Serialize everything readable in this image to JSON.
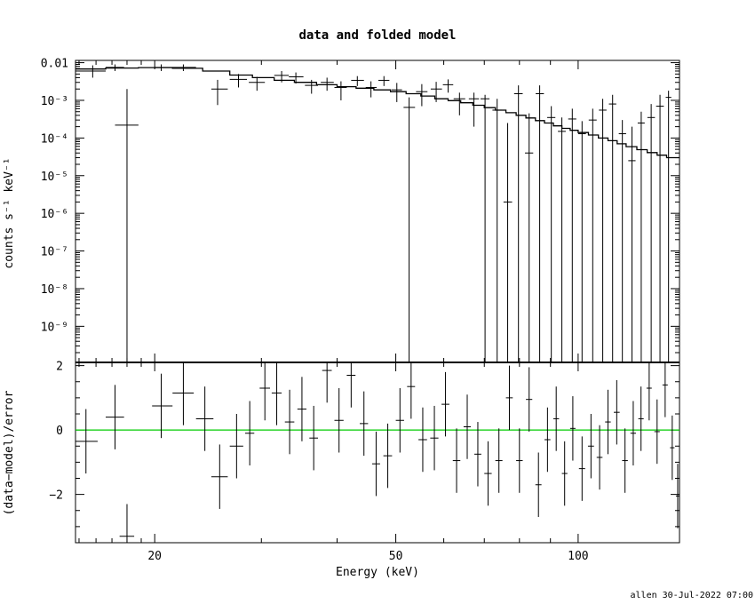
{
  "chart_data": [
    {
      "panel": "top",
      "type": "scatter",
      "title": "data and folded model",
      "ylabel": "counts s⁻¹ keV⁻¹",
      "xlabel": "Energy (keV)",
      "xscale": "log",
      "yscale": "log",
      "xlim": [
        14.8,
        147
      ],
      "ylim": [
        1.1e-10,
        0.0115
      ],
      "y_tick_labels": [
        "0.01",
        "10⁻³",
        "10⁻⁴",
        "10⁻⁵",
        "10⁻⁶",
        "10⁻⁷",
        "10⁻⁸",
        "10⁻⁹"
      ],
      "y_tick_values": [
        0.01,
        0.001,
        0.0001,
        1e-05,
        1e-06,
        1e-07,
        1e-08,
        1e-09
      ],
      "series": [
        {
          "kind": "data-with-errors",
          "points": [
            {
              "x": 15.8,
              "xlo": 15.0,
              "xhi": 16.6,
              "y": 0.006,
              "ylo": 0.004,
              "yhi": 0.0085
            },
            {
              "x": 18.0,
              "xlo": 17.2,
              "xhi": 18.8,
              "y": 0.00022,
              "ylo": 1.1e-10,
              "yhi": 0.002
            },
            {
              "x": 17.2,
              "xlo": 16.6,
              "xhi": 17.8,
              "y": 0.0075,
              "ylo": 0.006,
              "yhi": 0.009
            },
            {
              "x": 20.5,
              "xlo": 20.0,
              "xhi": 21.4,
              "y": 0.0075,
              "ylo": 0.006,
              "yhi": 0.009
            },
            {
              "x": 22.3,
              "xlo": 21.4,
              "xhi": 23.4,
              "y": 0.0075,
              "ylo": 0.006,
              "yhi": 0.009
            },
            {
              "x": 25.4,
              "xlo": 24.8,
              "xhi": 26.4,
              "y": 0.002,
              "ylo": 0.00075,
              "yhi": 0.0035
            },
            {
              "x": 27.5,
              "xlo": 26.6,
              "xhi": 28.4,
              "y": 0.0036,
              "ylo": 0.0022,
              "yhi": 0.005
            },
            {
              "x": 29.5,
              "xlo": 28.6,
              "xhi": 30.4,
              "y": 0.003,
              "ylo": 0.0018,
              "yhi": 0.0042
            },
            {
              "x": 32.4,
              "xlo": 31.5,
              "xhi": 33.3,
              "y": 0.0046,
              "ylo": 0.003,
              "yhi": 0.006
            },
            {
              "x": 34.2,
              "xlo": 33.3,
              "xhi": 35.2,
              "y": 0.0042,
              "ylo": 0.0028,
              "yhi": 0.0055
            },
            {
              "x": 36.3,
              "xlo": 35.4,
              "xhi": 37.2,
              "y": 0.0025,
              "ylo": 0.0015,
              "yhi": 0.0035
            },
            {
              "x": 38.5,
              "xlo": 37.6,
              "xhi": 39.5,
              "y": 0.003,
              "ylo": 0.0018,
              "yhi": 0.004
            },
            {
              "x": 40.6,
              "xlo": 39.6,
              "xhi": 41.5,
              "y": 0.0022,
              "ylo": 0.001,
              "yhi": 0.0032
            },
            {
              "x": 43.2,
              "xlo": 42.2,
              "xhi": 44.3,
              "y": 0.0034,
              "ylo": 0.0024,
              "yhi": 0.0044
            },
            {
              "x": 45.5,
              "xlo": 44.6,
              "xhi": 46.5,
              "y": 0.0022,
              "ylo": 0.0012,
              "yhi": 0.0032
            },
            {
              "x": 47.8,
              "xlo": 46.8,
              "xhi": 48.8,
              "y": 0.0034,
              "ylo": 0.0024,
              "yhi": 0.0044
            },
            {
              "x": 50.2,
              "xlo": 49.2,
              "xhi": 51.2,
              "y": 0.0019,
              "ylo": 0.0009,
              "yhi": 0.0029
            },
            {
              "x": 52.6,
              "xlo": 51.5,
              "xhi": 53.8,
              "y": 0.00065,
              "ylo": 1.1e-10,
              "yhi": 0.0012
            },
            {
              "x": 55.2,
              "xlo": 54.0,
              "xhi": 56.4,
              "y": 0.0017,
              "ylo": 0.0007,
              "yhi": 0.0027
            },
            {
              "x": 58.3,
              "xlo": 57.1,
              "xhi": 59.6,
              "y": 0.002,
              "ylo": 0.0009,
              "yhi": 0.0031
            },
            {
              "x": 61.0,
              "xlo": 59.8,
              "xhi": 62.2,
              "y": 0.0026,
              "ylo": 0.0016,
              "yhi": 0.0036
            },
            {
              "x": 63.7,
              "xlo": 62.3,
              "xhi": 65.1,
              "y": 0.0011,
              "ylo": 0.0004,
              "yhi": 0.0016
            },
            {
              "x": 67.3,
              "xlo": 66.0,
              "xhi": 68.6,
              "y": 0.0011,
              "ylo": 0.0002,
              "yhi": 0.0016
            },
            {
              "x": 70.2,
              "xlo": 69.0,
              "xhi": 71.4,
              "y": 0.0011,
              "ylo": 1.1e-10,
              "yhi": 0.0014
            },
            {
              "x": 73.5,
              "xlo": 72.2,
              "xhi": 74.8,
              "y": 0.00055,
              "ylo": 1.1e-10,
              "yhi": 0.0011
            },
            {
              "x": 76.5,
              "xlo": 75.3,
              "xhi": 77.8,
              "y": 2e-06,
              "ylo": 1.1e-10,
              "yhi": 0.00025
            },
            {
              "x": 79.7,
              "xlo": 78.4,
              "xhi": 81.0,
              "y": 0.0015,
              "ylo": 1.1e-10,
              "yhi": 0.0025
            },
            {
              "x": 83.0,
              "xlo": 81.7,
              "xhi": 84.3,
              "y": 4e-05,
              "ylo": 1.1e-10,
              "yhi": 0.00045
            },
            {
              "x": 86.4,
              "xlo": 85.1,
              "xhi": 87.8,
              "y": 0.0015,
              "ylo": 1.1e-10,
              "yhi": 0.0025
            },
            {
              "x": 90.3,
              "xlo": 88.9,
              "xhi": 91.7,
              "y": 0.00035,
              "ylo": 1.1e-10,
              "yhi": 0.0007
            },
            {
              "x": 94.0,
              "xlo": 92.6,
              "xhi": 95.4,
              "y": 0.00015,
              "ylo": 1.1e-10,
              "yhi": 0.00035
            },
            {
              "x": 97.8,
              "xlo": 96.3,
              "xhi": 99.3,
              "y": 0.00032,
              "ylo": 1.1e-10,
              "yhi": 0.0006
            },
            {
              "x": 101.5,
              "xlo": 100.0,
              "xhi": 103.0,
              "y": 0.00013,
              "ylo": 1.1e-10,
              "yhi": 0.00028
            },
            {
              "x": 105.7,
              "xlo": 104.1,
              "xhi": 107.3,
              "y": 0.0003,
              "ylo": 1.1e-10,
              "yhi": 0.0006
            },
            {
              "x": 109.8,
              "xlo": 108.2,
              "xhi": 111.4,
              "y": 0.00055,
              "ylo": 1.1e-10,
              "yhi": 0.0011
            },
            {
              "x": 114.0,
              "xlo": 112.4,
              "xhi": 115.6,
              "y": 0.0008,
              "ylo": 1.1e-10,
              "yhi": 0.0014
            },
            {
              "x": 118.3,
              "xlo": 116.7,
              "xhi": 120.0,
              "y": 0.00013,
              "ylo": 1.1e-10,
              "yhi": 0.0003
            },
            {
              "x": 122.7,
              "xlo": 121.0,
              "xhi": 124.4,
              "y": 2.5e-05,
              "ylo": 1.1e-10,
              "yhi": 0.0002
            },
            {
              "x": 127.1,
              "xlo": 125.4,
              "xhi": 128.8,
              "y": 0.00025,
              "ylo": 1.1e-10,
              "yhi": 0.0005
            },
            {
              "x": 132.0,
              "xlo": 130.1,
              "xhi": 133.9,
              "y": 0.00035,
              "ylo": 1.1e-10,
              "yhi": 0.0008
            },
            {
              "x": 136.5,
              "xlo": 134.5,
              "xhi": 138.5,
              "y": 0.0007,
              "ylo": 1.1e-10,
              "yhi": 0.0014
            },
            {
              "x": 141.0,
              "xlo": 139.5,
              "xhi": 142.5,
              "y": 0.0012,
              "ylo": 1.1e-10,
              "yhi": 0.0018
            }
          ]
        },
        {
          "kind": "model-step",
          "steps": [
            [
              14.8,
              0.0068
            ],
            [
              16.6,
              0.0072
            ],
            [
              18.8,
              0.0074
            ],
            [
              21.4,
              0.0071
            ],
            [
              24.0,
              0.006
            ],
            [
              26.6,
              0.0047
            ],
            [
              29.0,
              0.004
            ],
            [
              31.5,
              0.0034
            ],
            [
              34.0,
              0.003
            ],
            [
              37.0,
              0.0026
            ],
            [
              40.0,
              0.0023
            ],
            [
              43.0,
              0.0021
            ],
            [
              46.0,
              0.0019
            ],
            [
              49.0,
              0.0017
            ],
            [
              52.0,
              0.0015
            ],
            [
              55.0,
              0.0013
            ],
            [
              58.0,
              0.0011
            ],
            [
              61.0,
              0.00098
            ],
            [
              64.0,
              0.00086
            ],
            [
              67.0,
              0.00074
            ],
            [
              70.0,
              0.00064
            ],
            [
              73.0,
              0.00055
            ],
            [
              76.0,
              0.00047
            ],
            [
              79.0,
              0.0004
            ],
            [
              82.0,
              0.00034
            ],
            [
              85.0,
              0.00029
            ],
            [
              88.0,
              0.00025
            ],
            [
              91.0,
              0.00021
            ],
            [
              94.0,
              0.00018
            ],
            [
              97.0,
              0.00016
            ],
            [
              100.0,
              0.00014
            ],
            [
              104.0,
              0.00012
            ],
            [
              108.0,
              0.0001
            ],
            [
              112.0,
              8.5e-05
            ],
            [
              116.0,
              7e-05
            ],
            [
              120.0,
              5.9e-05
            ],
            [
              125.0,
              4.9e-05
            ],
            [
              130.0,
              4.1e-05
            ],
            [
              135.0,
              3.5e-05
            ],
            [
              140.0,
              3e-05
            ],
            [
              147.0,
              2.6e-05
            ]
          ]
        }
      ]
    },
    {
      "panel": "bottom",
      "type": "scatter",
      "ylabel": "(data−model)/error",
      "xlabel": "Energy (keV)",
      "xscale": "log",
      "xlim": [
        14.8,
        147
      ],
      "ylim": [
        -3.5,
        2.1
      ],
      "y_tick_values": [
        2,
        0,
        -2
      ],
      "y_tick_labels": [
        "2",
        "0",
        "−2"
      ],
      "x_tick_values": [
        20,
        50,
        100
      ],
      "x_tick_labels": [
        "20",
        "50",
        "100"
      ],
      "zero_line_color": "#00cc00",
      "points": [
        {
          "x": 15.4,
          "xlo": 14.8,
          "xhi": 16.1,
          "y": -0.35,
          "e": 1.0
        },
        {
          "x": 17.2,
          "xlo": 16.6,
          "xhi": 17.8,
          "y": 0.4,
          "e": 1.0
        },
        {
          "x": 18.0,
          "xlo": 17.5,
          "xhi": 18.5,
          "y": -3.3,
          "e": 1.0
        },
        {
          "x": 20.5,
          "xlo": 19.8,
          "xhi": 21.4,
          "y": 0.75,
          "e": 1.0
        },
        {
          "x": 22.3,
          "xlo": 21.4,
          "xhi": 23.2,
          "y": 1.15,
          "e": 1.0
        },
        {
          "x": 24.2,
          "xlo": 23.4,
          "xhi": 25.0,
          "y": 0.35,
          "e": 1.0
        },
        {
          "x": 25.6,
          "xlo": 24.8,
          "xhi": 26.4,
          "y": -1.45,
          "e": 1.0
        },
        {
          "x": 27.3,
          "xlo": 26.6,
          "xhi": 28.0,
          "y": -0.5,
          "e": 1.0
        },
        {
          "x": 28.7,
          "xlo": 28.2,
          "xhi": 29.2,
          "y": -0.1,
          "e": 1.0
        },
        {
          "x": 30.4,
          "xlo": 29.8,
          "xhi": 31.0,
          "y": 1.3,
          "e": 1.0
        },
        {
          "x": 31.8,
          "xlo": 31.2,
          "xhi": 32.4,
          "y": 1.15,
          "e": 1.0
        },
        {
          "x": 33.4,
          "xlo": 32.8,
          "xhi": 34.0,
          "y": 0.25,
          "e": 1.0
        },
        {
          "x": 35.0,
          "xlo": 34.4,
          "xhi": 35.6,
          "y": 0.65,
          "e": 1.0
        },
        {
          "x": 36.6,
          "xlo": 36.0,
          "xhi": 37.2,
          "y": -0.25,
          "e": 1.0
        },
        {
          "x": 38.5,
          "xlo": 37.8,
          "xhi": 39.2,
          "y": 1.85,
          "e": 1.0
        },
        {
          "x": 40.3,
          "xlo": 39.6,
          "xhi": 41.0,
          "y": 0.3,
          "e": 1.0
        },
        {
          "x": 42.2,
          "xlo": 41.5,
          "xhi": 42.9,
          "y": 1.7,
          "e": 1.0
        },
        {
          "x": 44.3,
          "xlo": 43.6,
          "xhi": 45.0,
          "y": 0.2,
          "e": 1.0
        },
        {
          "x": 46.4,
          "xlo": 45.7,
          "xhi": 47.1,
          "y": -1.05,
          "e": 1.0
        },
        {
          "x": 48.5,
          "xlo": 47.7,
          "xhi": 49.3,
          "y": -0.8,
          "e": 1.0
        },
        {
          "x": 50.8,
          "xlo": 50.0,
          "xhi": 51.6,
          "y": 0.3,
          "e": 1.0
        },
        {
          "x": 53.0,
          "xlo": 52.2,
          "xhi": 53.8,
          "y": 1.35,
          "e": 1.0
        },
        {
          "x": 55.4,
          "xlo": 54.5,
          "xhi": 56.3,
          "y": -0.3,
          "e": 1.0
        },
        {
          "x": 57.9,
          "xlo": 57.0,
          "xhi": 58.8,
          "y": -0.25,
          "e": 1.0
        },
        {
          "x": 60.4,
          "xlo": 59.5,
          "xhi": 61.3,
          "y": 0.8,
          "e": 1.0
        },
        {
          "x": 63.0,
          "xlo": 62.1,
          "xhi": 63.9,
          "y": -0.95,
          "e": 1.0
        },
        {
          "x": 65.6,
          "xlo": 64.7,
          "xhi": 66.5,
          "y": 0.1,
          "e": 1.0
        },
        {
          "x": 68.3,
          "xlo": 67.4,
          "xhi": 69.2,
          "y": -0.75,
          "e": 1.0
        },
        {
          "x": 71.0,
          "xlo": 70.0,
          "xhi": 72.0,
          "y": -1.35,
          "e": 1.0
        },
        {
          "x": 74.0,
          "xlo": 73.0,
          "xhi": 75.0,
          "y": -0.95,
          "e": 1.0
        },
        {
          "x": 77.0,
          "xlo": 76.0,
          "xhi": 78.0,
          "y": 1.0,
          "e": 1.0
        },
        {
          "x": 80.0,
          "xlo": 79.0,
          "xhi": 81.0,
          "y": -0.95,
          "e": 1.0
        },
        {
          "x": 83.0,
          "xlo": 82.0,
          "xhi": 84.0,
          "y": 0.95,
          "e": 1.0
        },
        {
          "x": 86.0,
          "xlo": 85.0,
          "xhi": 87.0,
          "y": -1.7,
          "e": 1.0
        },
        {
          "x": 89.0,
          "xlo": 88.0,
          "xhi": 90.0,
          "y": -0.3,
          "e": 1.0
        },
        {
          "x": 92.0,
          "xlo": 91.0,
          "xhi": 93.0,
          "y": 0.35,
          "e": 1.0
        },
        {
          "x": 95.0,
          "xlo": 94.0,
          "xhi": 96.0,
          "y": -1.35,
          "e": 1.0
        },
        {
          "x": 98.0,
          "xlo": 97.0,
          "xhi": 99.0,
          "y": 0.05,
          "e": 1.0
        },
        {
          "x": 101.5,
          "xlo": 100.3,
          "xhi": 102.7,
          "y": -1.2,
          "e": 1.0
        },
        {
          "x": 105.0,
          "xlo": 103.8,
          "xhi": 106.2,
          "y": -0.5,
          "e": 1.0
        },
        {
          "x": 108.5,
          "xlo": 107.3,
          "xhi": 109.7,
          "y": -0.85,
          "e": 1.0
        },
        {
          "x": 112.0,
          "xlo": 110.8,
          "xhi": 113.2,
          "y": 0.25,
          "e": 1.0
        },
        {
          "x": 115.8,
          "xlo": 114.5,
          "xhi": 117.1,
          "y": 0.55,
          "e": 1.0
        },
        {
          "x": 119.5,
          "xlo": 118.2,
          "xhi": 120.8,
          "y": -0.95,
          "e": 1.0
        },
        {
          "x": 123.3,
          "xlo": 122.0,
          "xhi": 124.6,
          "y": -0.1,
          "e": 1.0
        },
        {
          "x": 127.0,
          "xlo": 125.7,
          "xhi": 128.3,
          "y": 0.35,
          "e": 1.0
        },
        {
          "x": 131.0,
          "xlo": 129.7,
          "xhi": 132.3,
          "y": 1.3,
          "e": 1.0
        },
        {
          "x": 135.0,
          "xlo": 133.6,
          "xhi": 136.4,
          "y": -0.05,
          "e": 1.0
        },
        {
          "x": 139.2,
          "xlo": 137.8,
          "xhi": 140.6,
          "y": 1.4,
          "e": 1.0
        },
        {
          "x": 143.0,
          "xlo": 141.8,
          "xhi": 144.2,
          "y": -0.55,
          "e": 1.0
        },
        {
          "x": 146.0,
          "xlo": 145.0,
          "xhi": 147.0,
          "y": -2.05,
          "e": 1.0
        }
      ]
    }
  ],
  "footer": {
    "credit": "allen 30-Jul-2022 07:00"
  }
}
